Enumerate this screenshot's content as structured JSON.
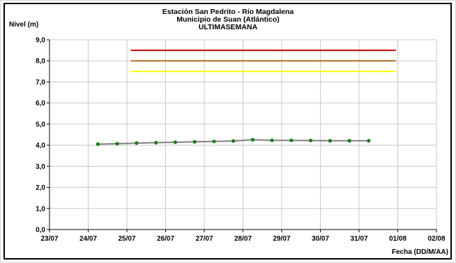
{
  "chart_data": {
    "type": "line",
    "title": [
      "Estación San Pedrito - Río Magdalena",
      "Municipio de Suan (Atlántico)",
      "ULTIMASEMANA"
    ],
    "ylabel": "Nivel (m)",
    "xlabel": "Fecha (DD/M/AA)",
    "ylim": [
      0,
      9
    ],
    "yticks": [
      "0,0",
      "1,0",
      "2,0",
      "3,0",
      "4,0",
      "5,0",
      "6,0",
      "7,0",
      "8,0",
      "9,0"
    ],
    "xlim": [
      "2023-07-23",
      "2023-08-02"
    ],
    "xticks": [
      "23/07",
      "24/07",
      "25/07",
      "26/07",
      "27/07",
      "28/07",
      "29/07",
      "30/07",
      "31/07",
      "01/08",
      "02/08"
    ],
    "grid": true,
    "series": [
      {
        "color": "#808080",
        "marker_color": "#1a7a1a",
        "x": [
          1.25,
          1.75,
          2.25,
          2.75,
          3.25,
          3.75,
          4.25,
          4.75,
          5.25,
          5.75,
          6.25,
          6.75,
          7.25,
          7.75,
          8.25
        ],
        "values": [
          4.05,
          4.07,
          4.1,
          4.12,
          4.14,
          4.16,
          4.18,
          4.2,
          4.26,
          4.23,
          4.23,
          4.22,
          4.21,
          4.21,
          4.21
        ]
      }
    ],
    "thresholds": [
      {
        "color": "#cc0000",
        "value": 8.5,
        "x_start": 2.1,
        "x_end": 8.95
      },
      {
        "color": "#b36b1a",
        "value": 8.0,
        "x_start": 2.1,
        "x_end": 8.95
      },
      {
        "color": "#ffff00",
        "value": 7.5,
        "x_start": 2.1,
        "x_end": 8.95
      }
    ]
  }
}
